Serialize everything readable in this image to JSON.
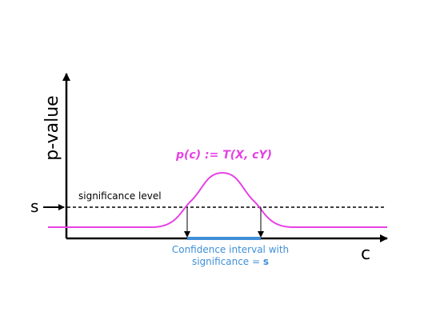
{
  "diagram": {
    "y_axis_label": "p-value",
    "x_axis_label": "c",
    "curve_label": "p(c) := T(X, cY)",
    "threshold_label": "s",
    "threshold_line_label": "significance level",
    "interval_caption_line1": "Confidence interval with",
    "interval_caption_prefix": "significance = ",
    "interval_caption_bold": "s"
  },
  "colors": {
    "curve": "#e542e5",
    "interval": "#3f8fd8",
    "axis": "#000000"
  }
}
